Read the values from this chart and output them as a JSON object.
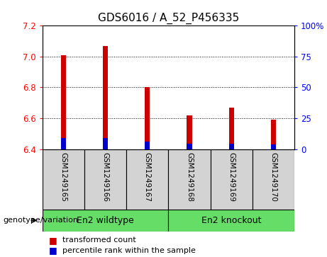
{
  "title": "GDS6016 / A_52_P456335",
  "categories": [
    "GSM1249165",
    "GSM1249166",
    "GSM1249167",
    "GSM1249168",
    "GSM1249169",
    "GSM1249170"
  ],
  "bar_bottoms": [
    6.4,
    6.4,
    6.4,
    6.4,
    6.4,
    6.4
  ],
  "bar_tops": [
    7.01,
    7.07,
    6.8,
    6.62,
    6.67,
    6.59
  ],
  "blue_bottoms": [
    6.4,
    6.4,
    6.4,
    6.4,
    6.4,
    6.4
  ],
  "blue_tops": [
    6.47,
    6.47,
    6.45,
    6.435,
    6.435,
    6.43
  ],
  "ylim": [
    6.4,
    7.2
  ],
  "yticks_left": [
    6.4,
    6.6,
    6.8,
    7.0,
    7.2
  ],
  "yticks_right": [
    0,
    25,
    50,
    75,
    100
  ],
  "bar_color": "#cc0000",
  "blue_color": "#0000cc",
  "group1_label": "En2 wildtype",
  "group2_label": "En2 knockout",
  "group_green": "#66dd66",
  "group_label": "genotype/variation",
  "legend_red": "transformed count",
  "legend_blue": "percentile rank within the sample",
  "bar_width": 0.12,
  "title_fontsize": 11,
  "tick_fontsize": 8.5,
  "cat_fontsize": 7.5,
  "group_fontsize": 9,
  "legend_fontsize": 8
}
